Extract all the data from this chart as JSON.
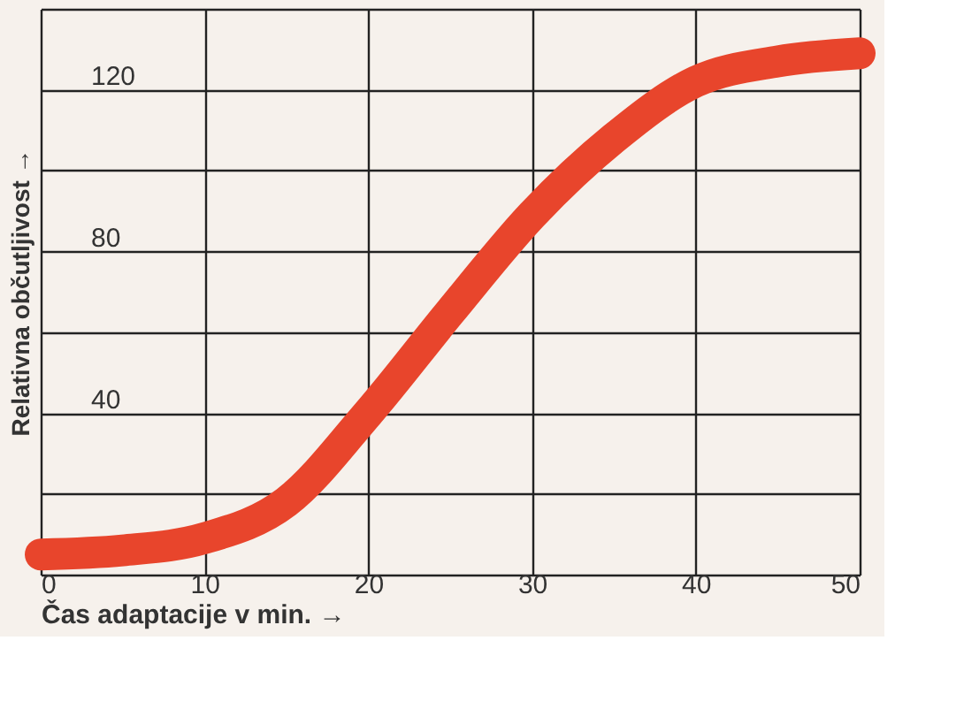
{
  "chart_data": {
    "type": "line",
    "xlabel": "Čas adaptacije v min.    →",
    "ylabel": "Relativna občutljivost    →",
    "x": [
      0,
      5,
      10,
      15,
      20,
      25,
      30,
      35,
      40,
      45,
      50
    ],
    "series": [
      {
        "color": "#e8452c",
        "values": [
          5,
          6,
          9,
          18,
          40,
          65,
          89,
          108,
          122,
          127,
          129
        ]
      }
    ],
    "xlim": [
      0,
      50
    ],
    "xticks": [
      0,
      10,
      20,
      30,
      40,
      50
    ],
    "ylim": [
      0,
      140
    ],
    "yticks": [
      {
        "value": 0,
        "label": null
      },
      {
        "value": 20,
        "label": null
      },
      40,
      {
        "value": 60,
        "label": null
      },
      80,
      {
        "value": 100,
        "label": null
      },
      120,
      {
        "value": 140,
        "label": null
      }
    ],
    "grid": true,
    "marker": "none",
    "line_style": "solid"
  }
}
